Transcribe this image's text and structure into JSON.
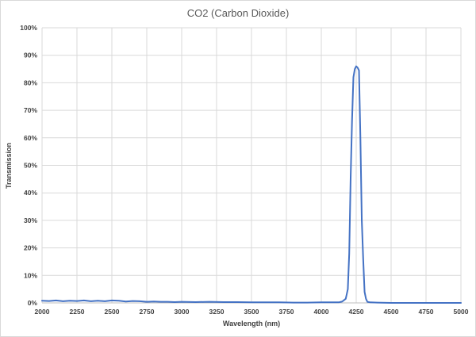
{
  "chart_data": {
    "type": "line",
    "title": "CO2 (Carbon Dioxide)",
    "xlabel": "Wavelength (nm)",
    "ylabel": "Transmission",
    "xlim": [
      2000,
      5000
    ],
    "ylim": [
      0,
      100
    ],
    "x_ticks": [
      2000,
      2250,
      2500,
      2750,
      3000,
      3250,
      3500,
      3750,
      4000,
      4250,
      4500,
      4750,
      5000
    ],
    "x_tick_labels": [
      "2000",
      "2250",
      "2500",
      "2750",
      "3000",
      "3250",
      "3500",
      "3750",
      "4000",
      "4250",
      "4500",
      "4750",
      "5000"
    ],
    "y_ticks": [
      0,
      10,
      20,
      30,
      40,
      50,
      60,
      70,
      80,
      90,
      100
    ],
    "y_tick_labels": [
      "0%",
      "10%",
      "20%",
      "30%",
      "40%",
      "50%",
      "60%",
      "70%",
      "80%",
      "90%",
      "100%"
    ],
    "grid": true,
    "legend": "none",
    "series": [
      {
        "color": "#4472c4",
        "x": [
          2000,
          2050,
          2100,
          2150,
          2200,
          2250,
          2300,
          2350,
          2400,
          2450,
          2500,
          2550,
          2600,
          2650,
          2700,
          2750,
          2800,
          2850,
          2900,
          2950,
          3000,
          3100,
          3200,
          3300,
          3400,
          3500,
          3600,
          3700,
          3800,
          3900,
          4000,
          4050,
          4100,
          4125,
          4150,
          4175,
          4190,
          4200,
          4210,
          4220,
          4230,
          4240,
          4250,
          4260,
          4270,
          4280,
          4290,
          4300,
          4310,
          4320,
          4330,
          4350,
          4400,
          4500,
          4600,
          4700,
          4800,
          4900,
          5000
        ],
        "values": [
          0.8,
          0.7,
          0.9,
          0.6,
          0.8,
          0.7,
          0.9,
          0.6,
          0.8,
          0.6,
          0.9,
          0.8,
          0.5,
          0.7,
          0.6,
          0.4,
          0.5,
          0.4,
          0.4,
          0.3,
          0.4,
          0.3,
          0.4,
          0.3,
          0.3,
          0.2,
          0.2,
          0.2,
          0.1,
          0.1,
          0.2,
          0.2,
          0.2,
          0.2,
          0.5,
          1.5,
          5,
          18,
          45,
          66,
          82,
          85,
          86,
          85.5,
          84.5,
          60,
          30,
          16,
          4,
          1.5,
          0.4,
          0.2,
          0.1,
          0,
          0,
          0,
          0,
          0,
          0
        ]
      }
    ]
  }
}
